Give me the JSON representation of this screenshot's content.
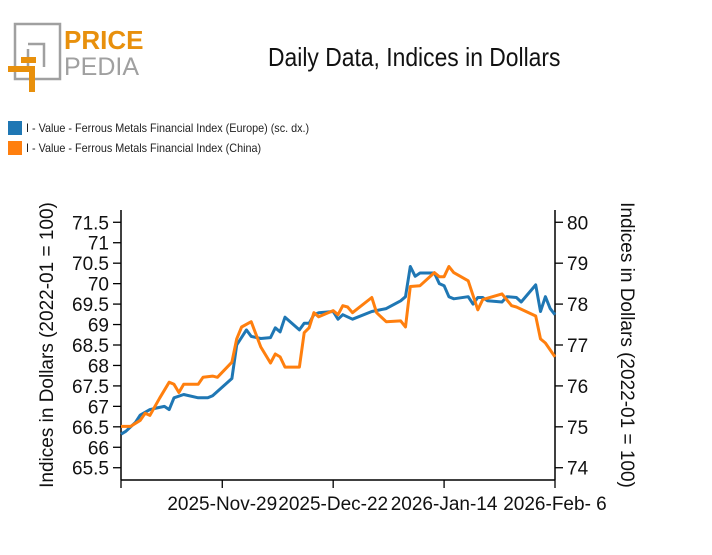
{
  "logo": {
    "text_top": "PRICE",
    "text_bottom": "PEDIA",
    "colors": {
      "orange": "#E8900C",
      "gray": "#A0A0A0"
    }
  },
  "chart_data": {
    "type": "line",
    "title": "Daily Data, Indices in Dollars",
    "ylabel": "Indices in Dollars (2022-01 = 100)",
    "y2label": "Indices in Dollars (2022-01 = 100)",
    "xlim": [
      "2025-11-08",
      "2026-02-06"
    ],
    "ylim": [
      65.2,
      71.8
    ],
    "y2lim": [
      73.7,
      80.3
    ],
    "yticks": [
      "65.5",
      "66",
      "66.5",
      "67",
      "67.5",
      "68",
      "68.5",
      "69",
      "69.5",
      "70",
      "70.5",
      "71",
      "71.5"
    ],
    "y2ticks": [
      "74",
      "75",
      "76",
      "77",
      "78",
      "79",
      "80"
    ],
    "xticks": [
      {
        "date": "2025-11-29",
        "label": "2025-Nov-29"
      },
      {
        "date": "2025-12-22",
        "label": "2025-Dec-22"
      },
      {
        "date": "2026-01-14",
        "label": "2026-Jan-14"
      },
      {
        "date": "2026-02-06",
        "label": "2026-Feb- 6"
      }
    ],
    "grid": false,
    "legend_position": "top-left",
    "series": [
      {
        "name": "I - Value - Ferrous Metals Financial Index (Europe) (sc. dx.)",
        "axis": "right",
        "color": "#1F77B4",
        "x": [
          "2025-11-08",
          "2025-11-09",
          "2025-11-11",
          "2025-11-12",
          "2025-11-14",
          "2025-11-15",
          "2025-11-17",
          "2025-11-18",
          "2025-11-19",
          "2025-11-21",
          "2025-11-24",
          "2025-11-26",
          "2025-11-27",
          "2025-12-01",
          "2025-12-02",
          "2025-12-04",
          "2025-12-05",
          "2025-12-07",
          "2025-12-09",
          "2025-12-10",
          "2025-12-11",
          "2025-12-12",
          "2025-12-15",
          "2025-12-16",
          "2025-12-17",
          "2025-12-18",
          "2025-12-19",
          "2025-12-22",
          "2025-12-23",
          "2025-12-24",
          "2025-12-26",
          "2025-12-30",
          "2026-01-02",
          "2026-01-05",
          "2026-01-06",
          "2026-01-07",
          "2026-01-08",
          "2026-01-09",
          "2026-01-12",
          "2026-01-13",
          "2026-01-14",
          "2026-01-15",
          "2026-01-16",
          "2026-01-19",
          "2026-01-20",
          "2026-01-21",
          "2026-01-22",
          "2026-01-23",
          "2026-01-26",
          "2026-01-27",
          "2026-01-29",
          "2026-01-30",
          "2026-02-02",
          "2026-02-03",
          "2026-02-04",
          "2026-02-05",
          "2026-02-06"
        ],
        "y": [
          74.82,
          74.89,
          75.11,
          75.29,
          75.42,
          75.45,
          75.5,
          75.42,
          75.71,
          75.79,
          75.71,
          75.71,
          75.76,
          76.18,
          77.0,
          77.37,
          77.21,
          77.16,
          77.18,
          77.42,
          77.32,
          77.68,
          77.37,
          77.53,
          77.53,
          77.74,
          77.79,
          77.82,
          77.63,
          77.74,
          77.63,
          77.82,
          77.89,
          78.08,
          78.18,
          78.92,
          78.68,
          78.76,
          78.76,
          78.5,
          78.45,
          78.18,
          78.13,
          78.18,
          78.0,
          78.16,
          78.16,
          78.08,
          78.05,
          78.18,
          78.16,
          78.05,
          78.47,
          77.82,
          78.18,
          77.89,
          77.74
        ]
      },
      {
        "name": "I - Value - Ferrous Metals Financial Index (China)",
        "axis": "left",
        "color": "#FF7F0E",
        "x": [
          "2025-11-08",
          "2025-11-10",
          "2025-11-12",
          "2025-11-13",
          "2025-11-14",
          "2025-11-16",
          "2025-11-18",
          "2025-11-19",
          "2025-11-20",
          "2025-11-21",
          "2025-11-24",
          "2025-11-25",
          "2025-11-27",
          "2025-11-28",
          "2025-12-01",
          "2025-12-02",
          "2025-12-03",
          "2025-12-05",
          "2025-12-07",
          "2025-12-09",
          "2025-12-10",
          "2025-12-11",
          "2025-12-12",
          "2025-12-15",
          "2025-12-16",
          "2025-12-17",
          "2025-12-18",
          "2025-12-19",
          "2025-12-22",
          "2025-12-23",
          "2025-12-24",
          "2025-12-25",
          "2025-12-26",
          "2025-12-30",
          "2025-12-31",
          "2026-01-02",
          "2026-01-05",
          "2026-01-06",
          "2026-01-07",
          "2026-01-09",
          "2026-01-12",
          "2026-01-13",
          "2026-01-14",
          "2026-01-15",
          "2026-01-16",
          "2026-01-19",
          "2026-01-21",
          "2026-01-22",
          "2026-01-26",
          "2026-01-28",
          "2026-01-29",
          "2026-02-02",
          "2026-02-03",
          "2026-02-04",
          "2026-02-06"
        ],
        "y": [
          66.51,
          66.51,
          66.66,
          66.83,
          66.78,
          67.2,
          67.59,
          67.54,
          67.34,
          67.54,
          67.54,
          67.71,
          67.74,
          67.71,
          68.08,
          68.65,
          68.94,
          69.07,
          68.45,
          68.06,
          68.28,
          68.21,
          67.96,
          67.96,
          68.8,
          68.92,
          69.29,
          69.19,
          69.34,
          69.24,
          69.46,
          69.43,
          69.29,
          69.66,
          69.29,
          69.07,
          69.09,
          68.94,
          69.93,
          69.95,
          70.27,
          70.17,
          70.17,
          70.42,
          70.27,
          70.07,
          69.36,
          69.61,
          69.75,
          69.46,
          69.43,
          69.21,
          68.65,
          68.55,
          68.21
        ]
      }
    ]
  }
}
